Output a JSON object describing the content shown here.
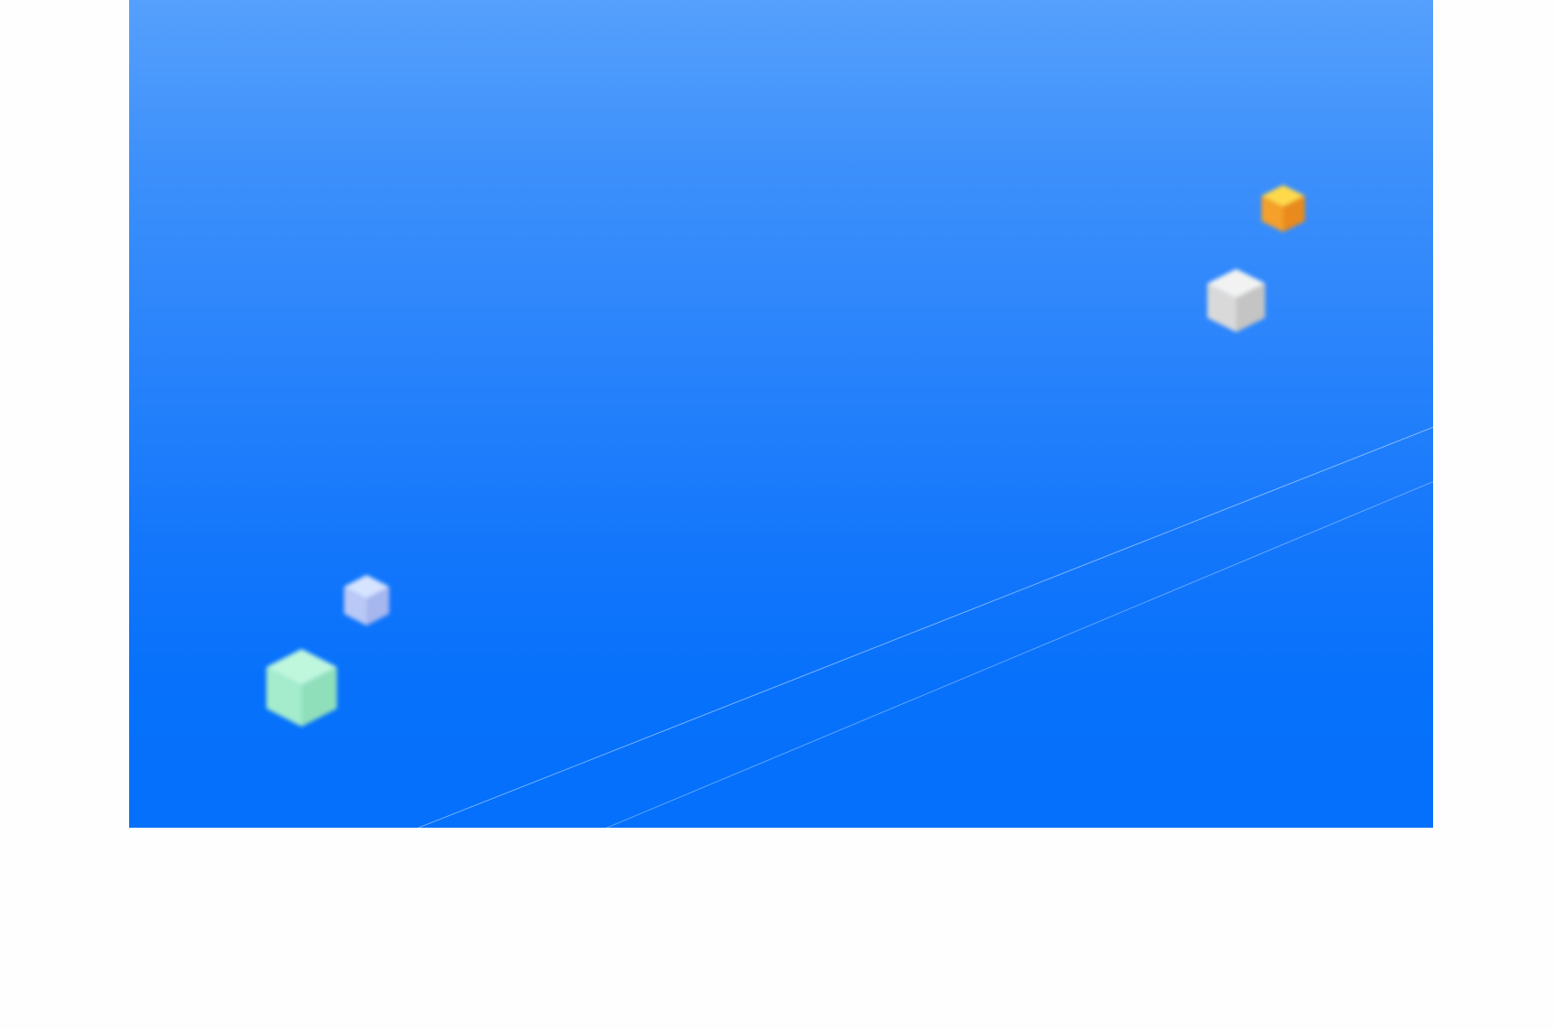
{
  "hero": {
    "background_top": "#55a0fc",
    "background_bottom": "#0470fb"
  },
  "decor": {
    "cubes": [
      {
        "name": "orange-cube-icon",
        "top": "#ffd94a",
        "left": "#f4a02a",
        "right": "#e88a1c"
      },
      {
        "name": "white-cube-icon",
        "top": "#f2f2f2",
        "left": "#d9d9d9",
        "right": "#c4c4c4"
      },
      {
        "name": "lavender-cube-icon",
        "top": "#d6e4ff",
        "left": "#b9c8f6",
        "right": "#a6b6ee"
      },
      {
        "name": "mint-cube-icon",
        "top": "#bff7dd",
        "left": "#a4eccb",
        "right": "#8fdfbb"
      }
    ],
    "line_color": "#8fbdfd"
  }
}
